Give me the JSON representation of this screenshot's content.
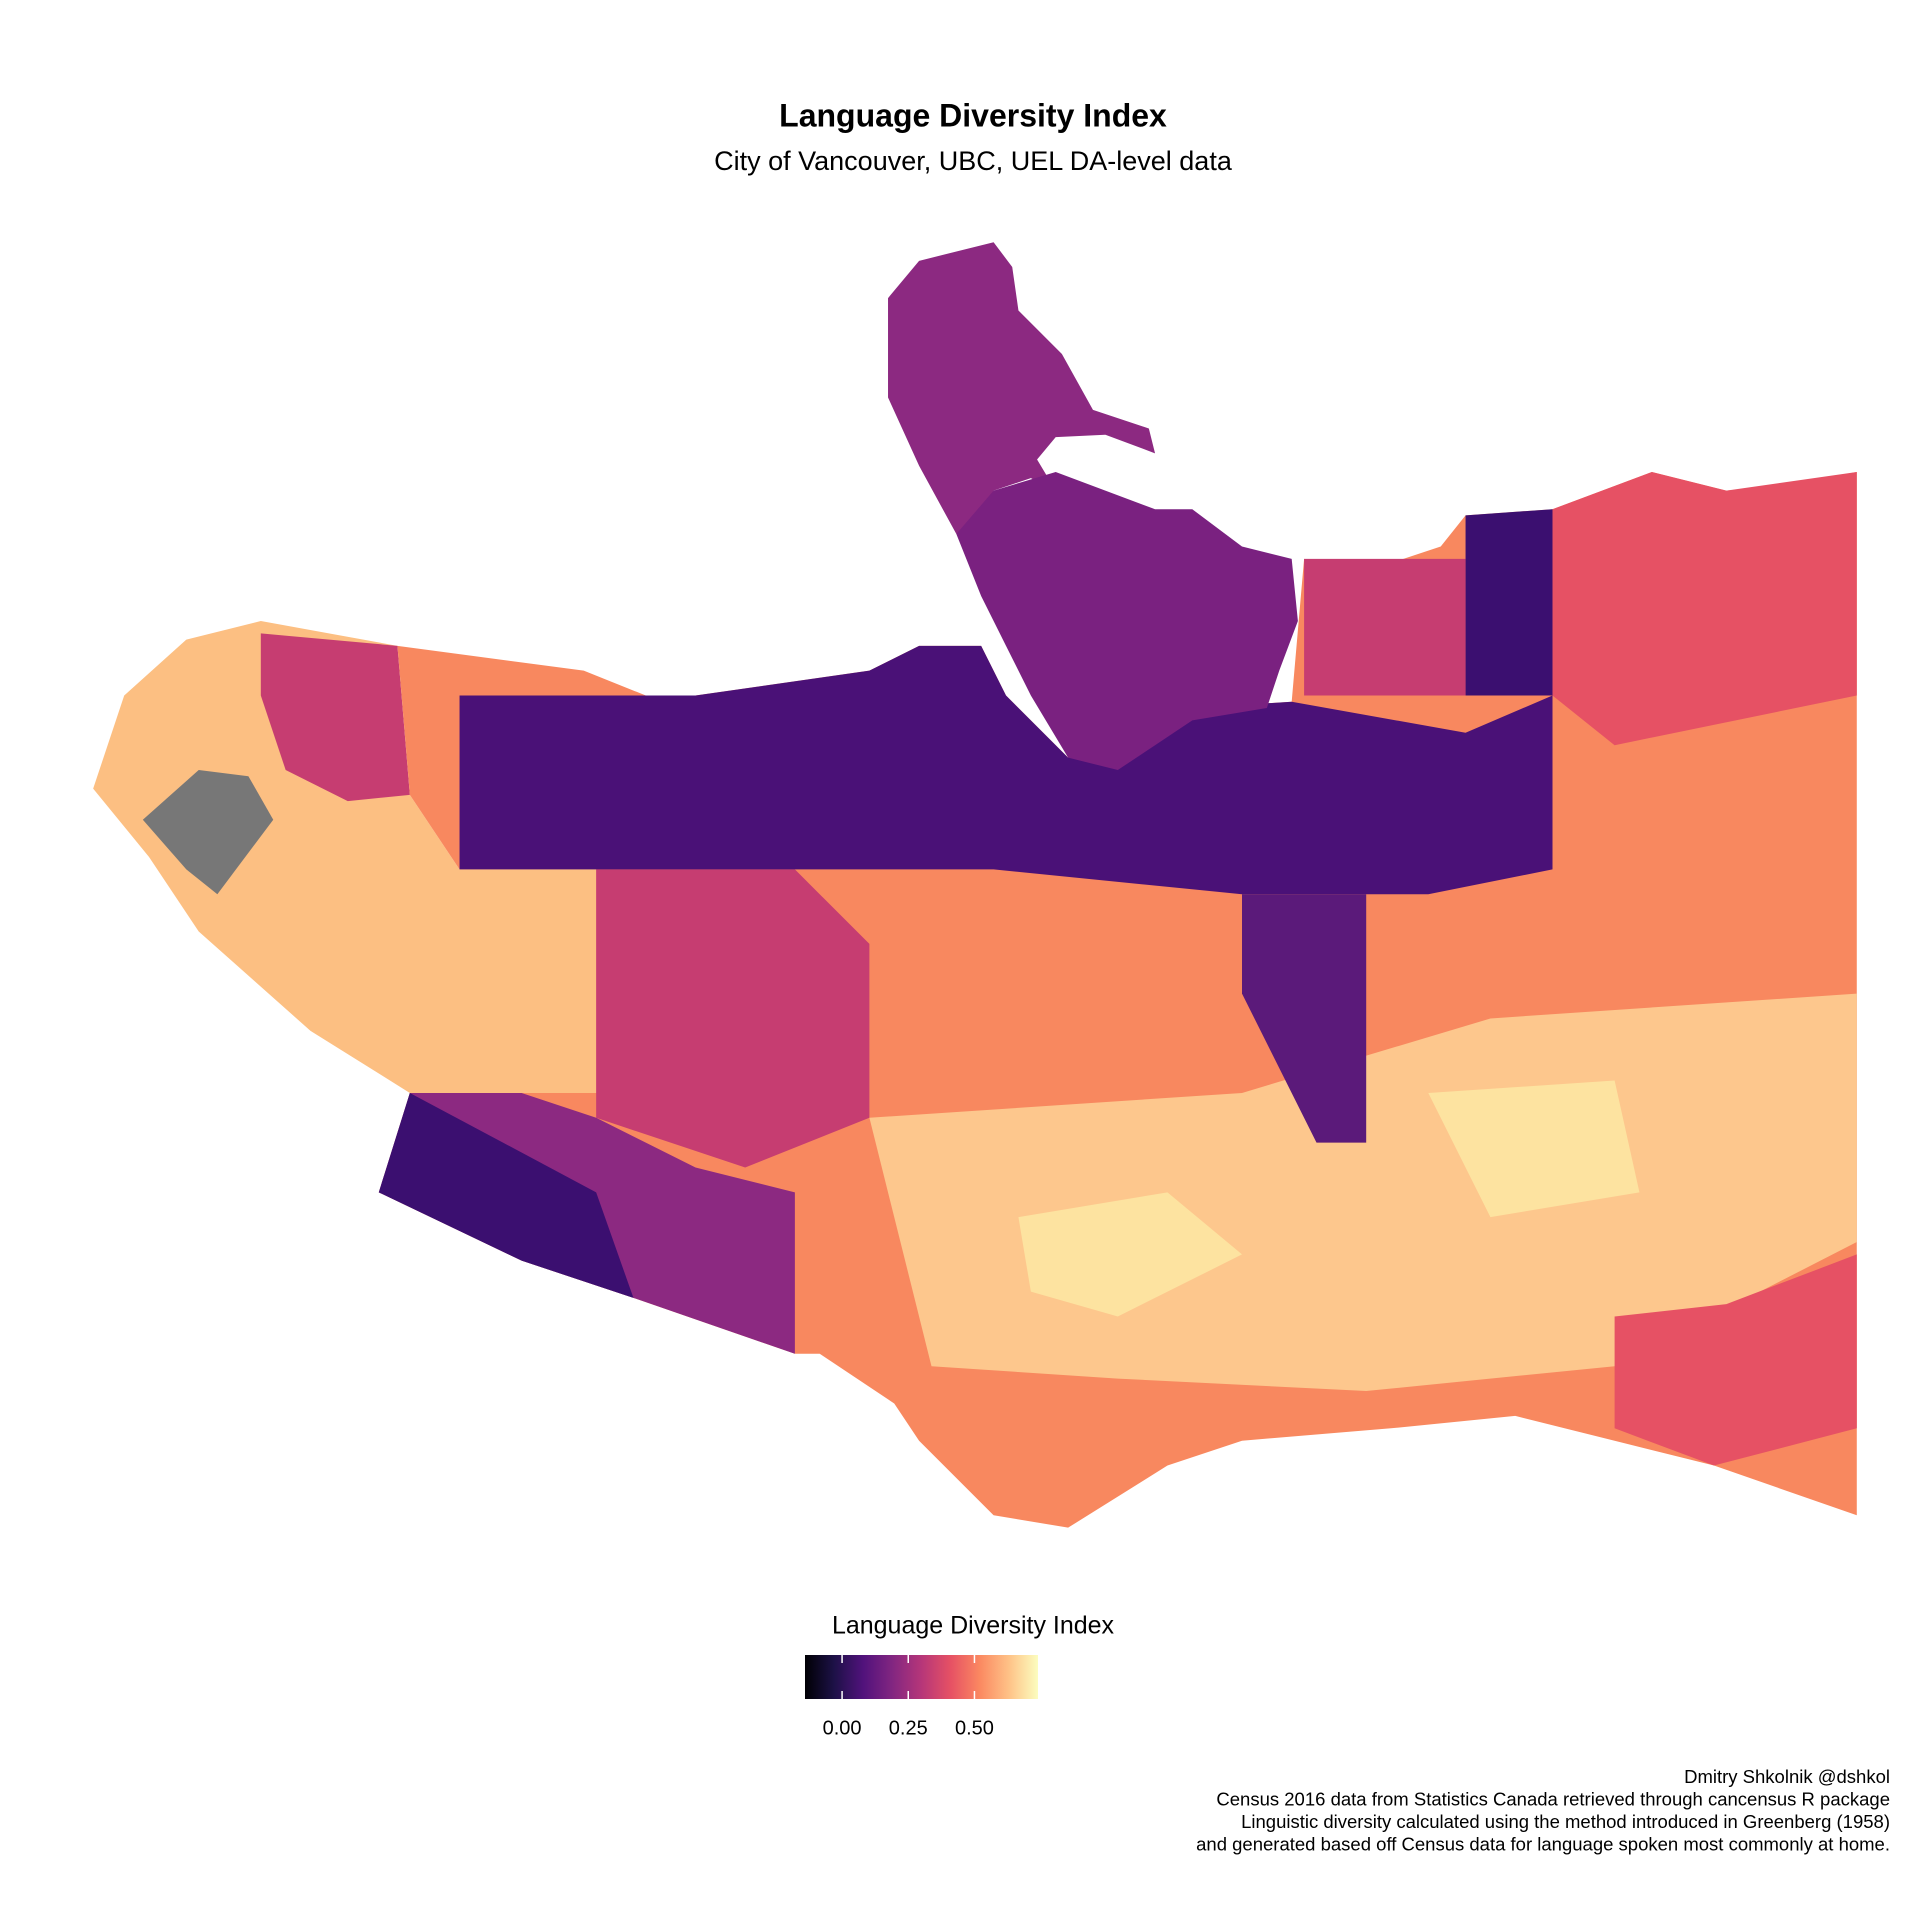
{
  "title": "Language Diversity Index",
  "subtitle": "City of Vancouver, UBC, UEL DA-level data",
  "legend": {
    "title": "Language Diversity Index",
    "lim": [
      -0.14,
      0.74
    ],
    "ticks": [
      {
        "value": 0,
        "label": "0.00"
      },
      {
        "value": 0.25,
        "label": "0.25"
      },
      {
        "value": 0.5,
        "label": "0.50"
      }
    ],
    "palette": [
      "#000004",
      "#1d1147",
      "#51127c",
      "#822681",
      "#b63679",
      "#e65164",
      "#fb8861",
      "#fec287",
      "#fcfdbf"
    ]
  },
  "caption": [
    "Dmitry Shkolnik @dshkol",
    "Census 2016 data from Statistics Canada retrieved through cancensus R package",
    "Linguistic diversity calculated using the method introduced in Greenberg (1958)",
    "and generated based off Census data for language spoken most commonly at home."
  ]
}
